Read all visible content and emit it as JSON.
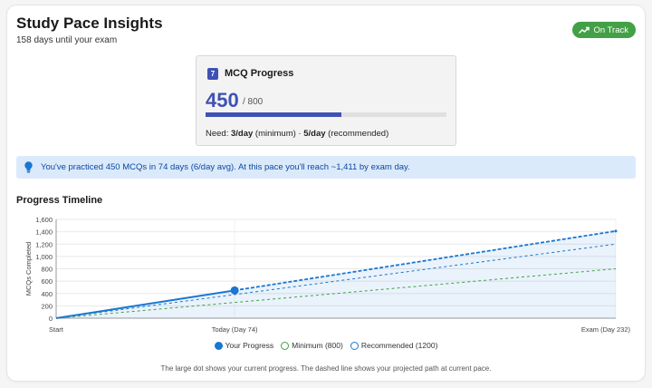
{
  "header": {
    "title": "Study Pace Insights",
    "subtitle": "158 days until your exam",
    "status": "On Track",
    "status_icon": "trending-up-icon",
    "status_color": "#43a047"
  },
  "mcq": {
    "icon_text": "7",
    "title": "MCQ Progress",
    "value": "450",
    "total": "/ 800",
    "progress_fraction": 0.5625,
    "need_prefix": "Need: ",
    "need_min": "3/day",
    "need_min_suffix": " (minimum) · ",
    "need_rec": "5/day",
    "need_rec_suffix": " (recommended)",
    "accent": "#3f51b5"
  },
  "info": {
    "icon": "lightbulb-icon",
    "text": "You've practiced 450 MCQs in 74 days (6/day avg). At this pace you'll reach ~1,411 by exam day."
  },
  "timeline": {
    "title": "Progress Timeline",
    "footnote": "The large dot shows your current progress. The dashed line shows your projected path at current pace."
  },
  "chart_data": {
    "type": "line",
    "ylabel": "MCQs Completed",
    "xlabel": "",
    "x_ticks": [
      {
        "day": 0,
        "label": "Start"
      },
      {
        "day": 74,
        "label": "Today (Day 74)"
      },
      {
        "day": 232,
        "label": "Exam (Day 232)"
      }
    ],
    "xlim": [
      0,
      232
    ],
    "ylim": [
      0,
      1600
    ],
    "y_ticks": [
      0,
      200,
      400,
      600,
      800,
      1000,
      1200,
      1400,
      1600
    ],
    "y_tick_labels": [
      "0",
      "200",
      "400",
      "600",
      "800",
      "1,000",
      "1,200",
      "1,400",
      "1,600"
    ],
    "grid": true,
    "series": [
      {
        "name": "Your Progress",
        "color": "#1976d2",
        "style": "solid",
        "points": [
          [
            0,
            0
          ],
          [
            74,
            450
          ]
        ]
      },
      {
        "name": "",
        "color": "#1976d2",
        "style": "dashed",
        "points": [
          [
            74,
            450
          ],
          [
            232,
            1411
          ]
        ]
      },
      {
        "name": "Minimum (800)",
        "color": "#43a047",
        "style": "dashed",
        "points": [
          [
            0,
            0
          ],
          [
            232,
            800
          ]
        ]
      },
      {
        "name": "Recommended (1200)",
        "color": "#1976d2",
        "style": "dashed",
        "points": [
          [
            0,
            0
          ],
          [
            232,
            1200
          ]
        ]
      }
    ],
    "current_point": {
      "x": 74,
      "y": 450
    },
    "legend": [
      {
        "label": "Your Progress",
        "color": "#1976d2",
        "filled": true
      },
      {
        "label": "Minimum (800)",
        "color": "#43a047",
        "filled": false
      },
      {
        "label": "Recommended (1200)",
        "color": "#1976d2",
        "filled": false
      }
    ],
    "legend_position": "bottom"
  }
}
